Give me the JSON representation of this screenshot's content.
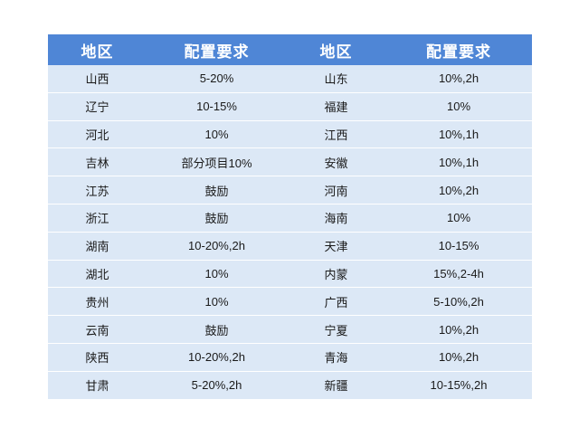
{
  "table": {
    "headers": [
      "地区",
      "配置要求",
      "地区",
      "配置要求"
    ],
    "rows": [
      [
        "山西",
        "5-20%",
        "山东",
        "10%,2h"
      ],
      [
        "辽宁",
        "10-15%",
        "福建",
        "10%"
      ],
      [
        "河北",
        "10%",
        "江西",
        "10%,1h"
      ],
      [
        "吉林",
        "部分项目10%",
        "安徽",
        "10%,1h"
      ],
      [
        "江苏",
        "鼓励",
        "河南",
        "10%,2h"
      ],
      [
        "浙江",
        "鼓励",
        "海南",
        "10%"
      ],
      [
        "湖南",
        "10-20%,2h",
        "天津",
        "10-15%"
      ],
      [
        "湖北",
        "10%",
        "内蒙",
        "15%,2-4h"
      ],
      [
        "贵州",
        "10%",
        "广西",
        "5-10%,2h"
      ],
      [
        "云南",
        "鼓励",
        "宁夏",
        "10%,2h"
      ],
      [
        "陕西",
        "10-20%,2h",
        "青海",
        "10%,2h"
      ],
      [
        "甘肃",
        "5-20%,2h",
        "新疆",
        "10-15%,2h"
      ]
    ]
  }
}
